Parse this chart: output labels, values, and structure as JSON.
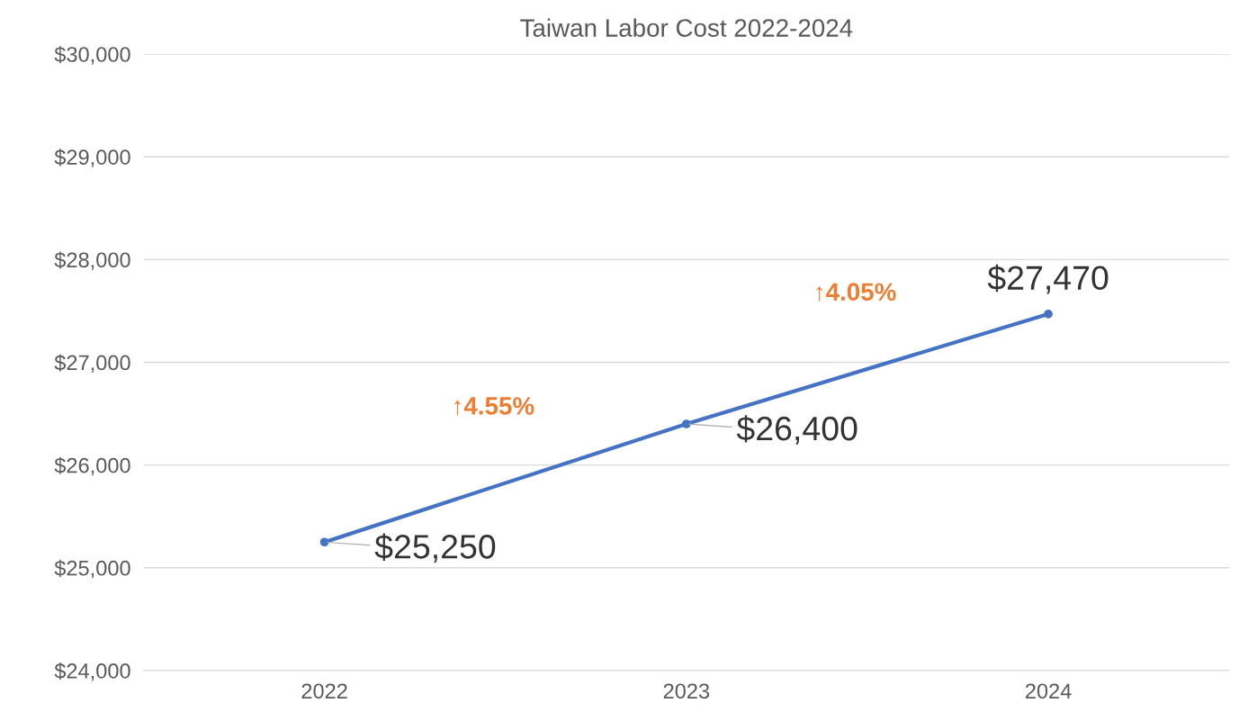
{
  "chart_data": {
    "type": "line",
    "title": "Taiwan Labor Cost 2022-2024",
    "categories": [
      "2022",
      "2023",
      "2024"
    ],
    "series": [
      {
        "color": "#4472c4",
        "values": [
          25250,
          26400,
          27470
        ],
        "value_labels": [
          "$25,250",
          "$26,400",
          "$27,470"
        ]
      }
    ],
    "ylim": [
      24000,
      30000
    ],
    "yticks": [
      {
        "value": 24000,
        "label": "$24,000"
      },
      {
        "value": 25000,
        "label": "$25,000"
      },
      {
        "value": 26000,
        "label": "$26,000"
      },
      {
        "value": 27000,
        "label": "$27,000"
      },
      {
        "value": 28000,
        "label": "$28,000"
      },
      {
        "value": 29000,
        "label": "$29,000"
      },
      {
        "value": 30000,
        "label": "$30,000"
      }
    ],
    "grid": "y",
    "marker": "circle",
    "line_style": "solid",
    "annotations": [
      "↑4.55%",
      "↑4.05%"
    ]
  }
}
